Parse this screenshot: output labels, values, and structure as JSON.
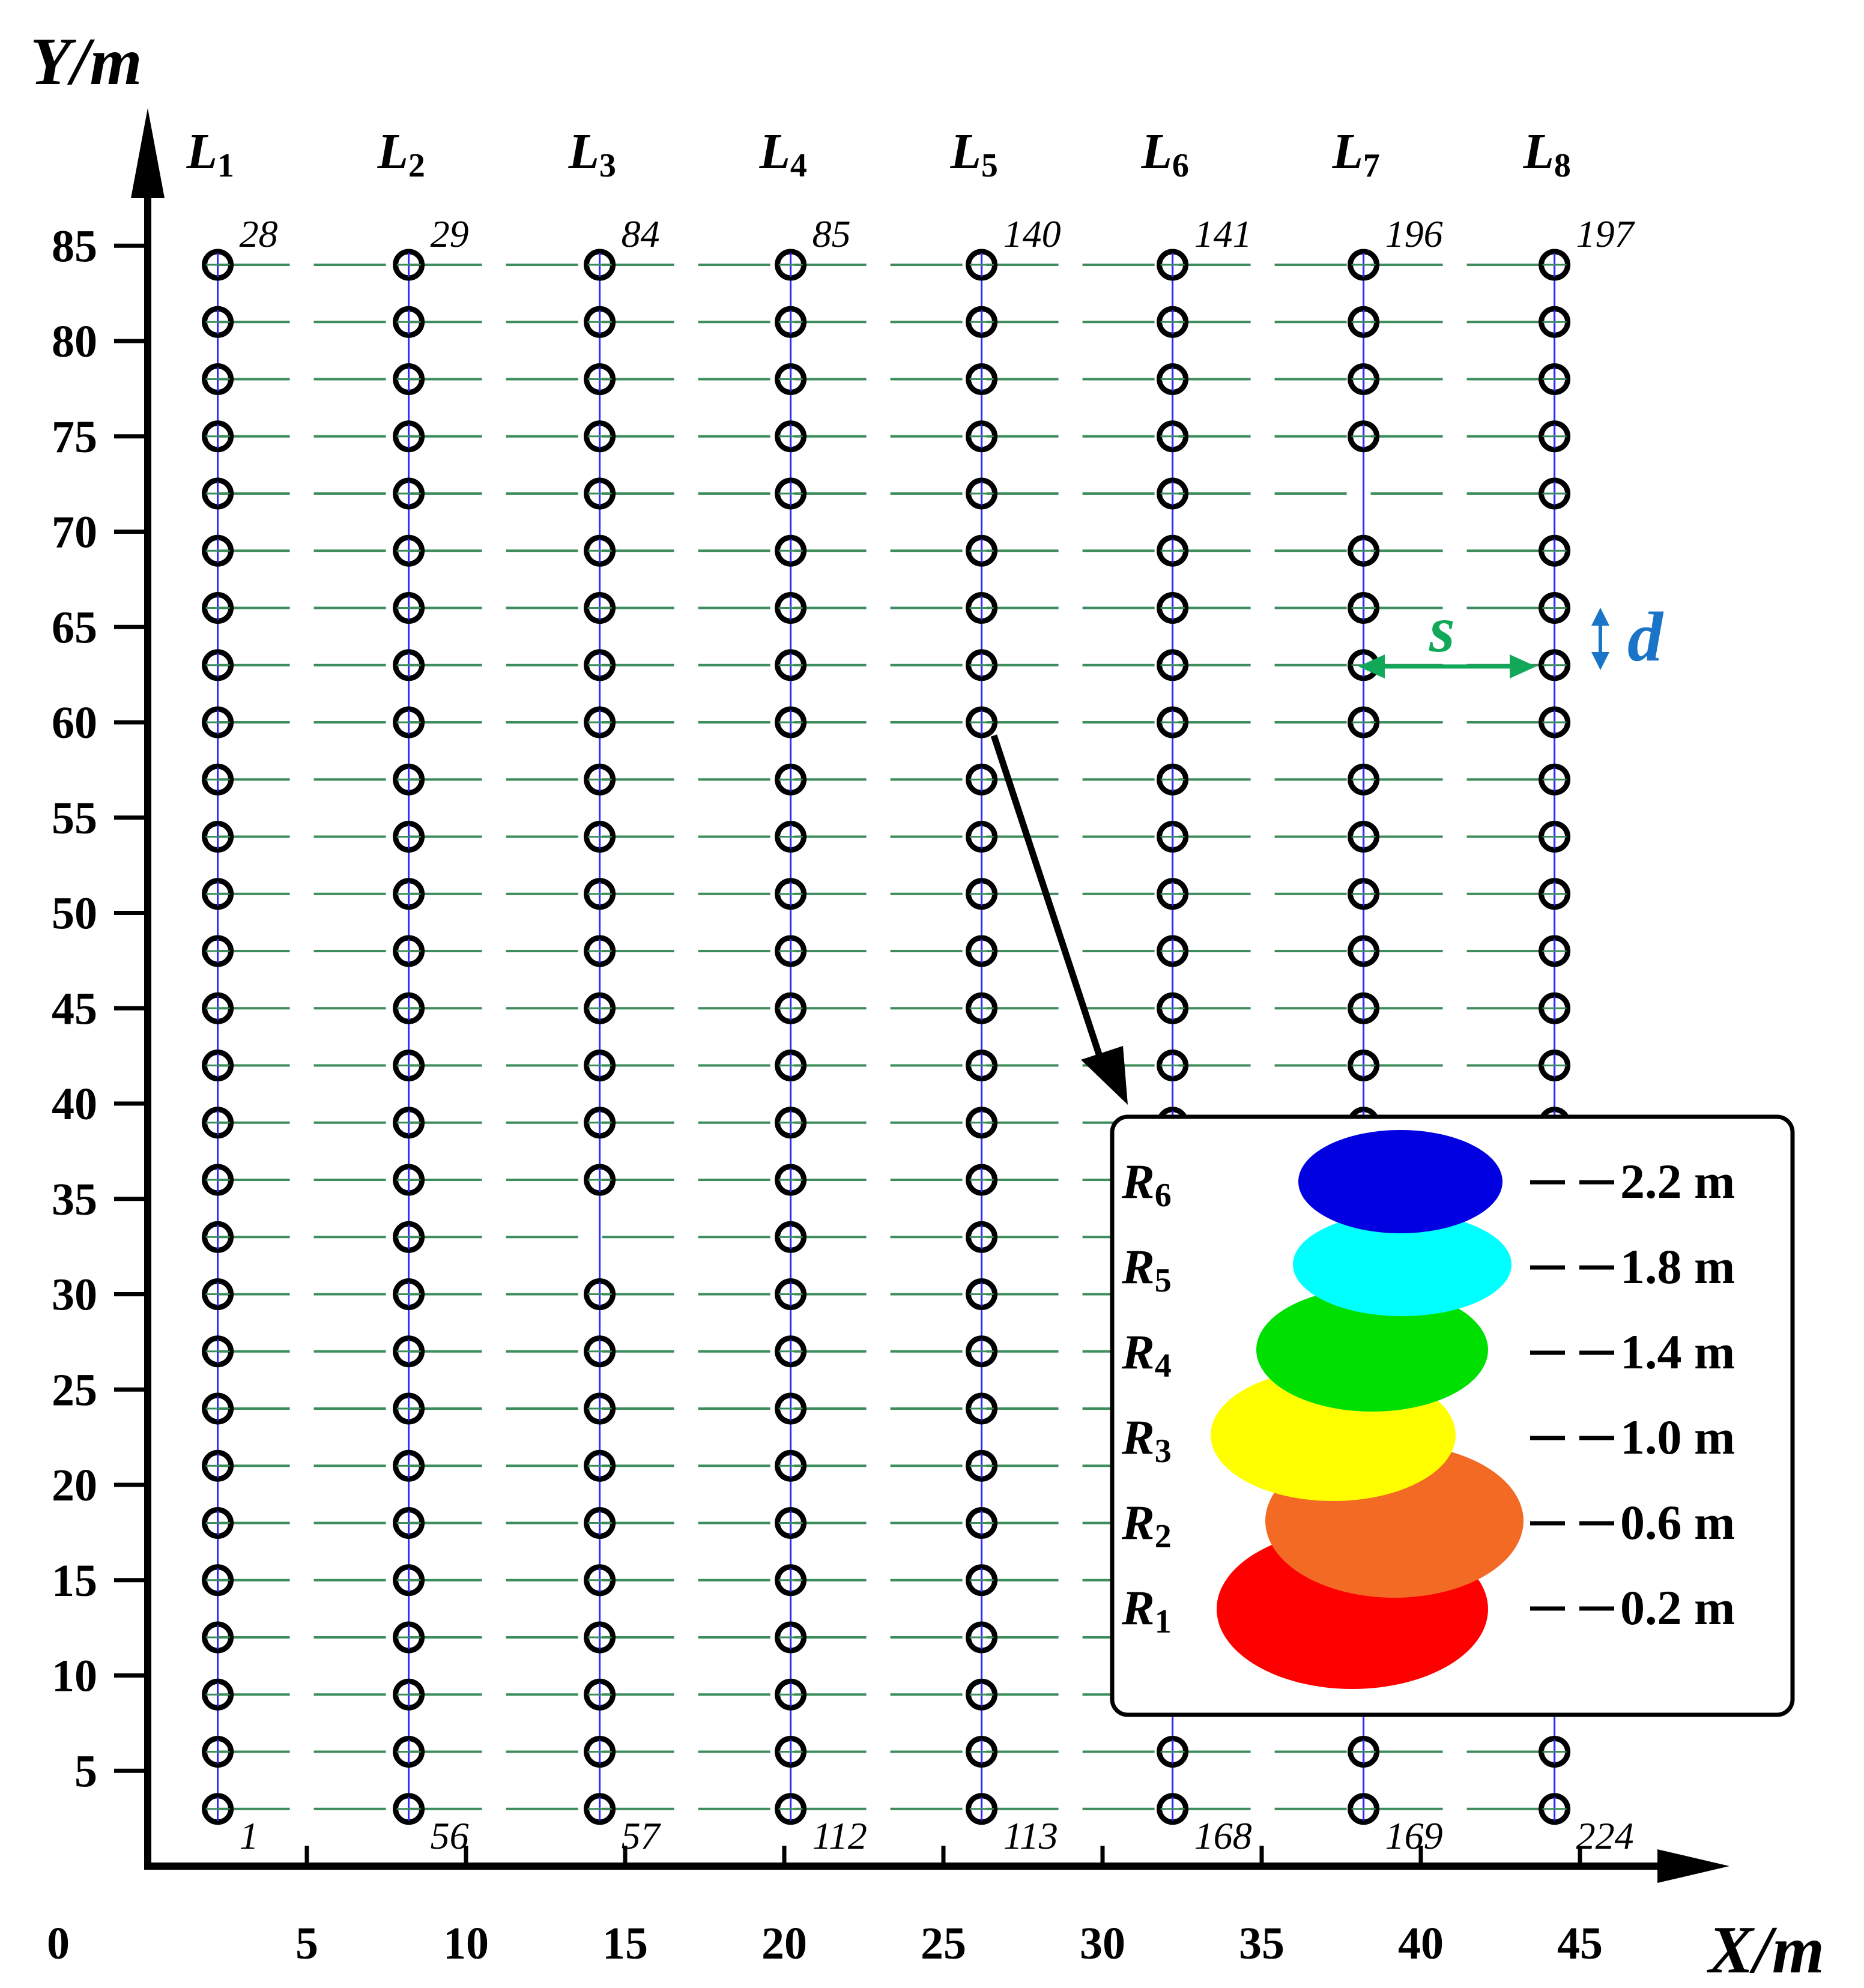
{
  "axes": {
    "x_title": "X/m",
    "y_title": "Y/m",
    "origin_label": "0",
    "x_ticks": [
      5,
      10,
      15,
      20,
      25,
      30,
      35,
      40,
      45
    ],
    "y_ticks": [
      5,
      10,
      15,
      20,
      25,
      30,
      35,
      40,
      45,
      50,
      55,
      60,
      65,
      70,
      75,
      80,
      85
    ],
    "xlim": [
      0,
      50
    ],
    "ylim": [
      0,
      92
    ]
  },
  "chart_data": {
    "type": "scatter",
    "lines": [
      {
        "label": "L",
        "sub": "1",
        "x": 2.2
      },
      {
        "label": "L",
        "sub": "2",
        "x": 8.2
      },
      {
        "label": "L",
        "sub": "3",
        "x": 14.2
      },
      {
        "label": "L",
        "sub": "4",
        "x": 20.2
      },
      {
        "label": "L",
        "sub": "5",
        "x": 26.2
      },
      {
        "label": "L",
        "sub": "6",
        "x": 32.2
      },
      {
        "label": "L",
        "sub": "7",
        "x": 38.2
      },
      {
        "label": "L",
        "sub": "8",
        "x": 44.2
      }
    ],
    "row_y": [
      3,
      6,
      9,
      12,
      15,
      18,
      21,
      24,
      27,
      30,
      33,
      36,
      39,
      42,
      45,
      48,
      51,
      54,
      57,
      60,
      63,
      66,
      69,
      72,
      75,
      78,
      81,
      84
    ],
    "missing_holes": [
      {
        "line": 3,
        "y": 33
      },
      {
        "line": 7,
        "y": 72
      }
    ],
    "hole_numbers": [
      {
        "text": "1",
        "line": 1,
        "pos": "bottom"
      },
      {
        "text": "28",
        "line": 1,
        "pos": "top"
      },
      {
        "text": "29",
        "line": 2,
        "pos": "top"
      },
      {
        "text": "56",
        "line": 2,
        "pos": "bottom"
      },
      {
        "text": "57",
        "line": 3,
        "pos": "bottom"
      },
      {
        "text": "84",
        "line": 3,
        "pos": "top"
      },
      {
        "text": "85",
        "line": 4,
        "pos": "top"
      },
      {
        "text": "112",
        "line": 4,
        "pos": "bottom"
      },
      {
        "text": "113",
        "line": 5,
        "pos": "bottom"
      },
      {
        "text": "140",
        "line": 5,
        "pos": "top"
      },
      {
        "text": "141",
        "line": 6,
        "pos": "top"
      },
      {
        "text": "168",
        "line": 6,
        "pos": "bottom"
      },
      {
        "text": "169",
        "line": 7,
        "pos": "bottom"
      },
      {
        "text": "196",
        "line": 7,
        "pos": "top"
      },
      {
        "text": "197",
        "line": 8,
        "pos": "top"
      },
      {
        "text": "224",
        "line": 8,
        "pos": "bottom"
      }
    ],
    "annotations": {
      "spacing_label": "s",
      "burden_label": "d"
    }
  },
  "legend": {
    "items": [
      {
        "name": "R",
        "sub": "6",
        "value": "2.2 m",
        "color": "#0000e0"
      },
      {
        "name": "R",
        "sub": "5",
        "value": "1.8 m",
        "color": "#00ffff"
      },
      {
        "name": "R",
        "sub": "4",
        "value": "1.4 m",
        "color": "#00e000"
      },
      {
        "name": "R",
        "sub": "3",
        "value": "1.0 m",
        "color": "#ffff00"
      },
      {
        "name": "R",
        "sub": "2",
        "value": "0.6 m",
        "color": "#f26a24"
      },
      {
        "name": "R",
        "sub": "1",
        "value": "0.2 m",
        "color": "#ff0000"
      }
    ]
  },
  "colors": {
    "row_line": "#3d8c5c",
    "column_line": "#2a2aff",
    "spacing_arrow": "#12a85a",
    "burden_arrow": "#1a74c8",
    "hole_stroke": "#000000"
  }
}
